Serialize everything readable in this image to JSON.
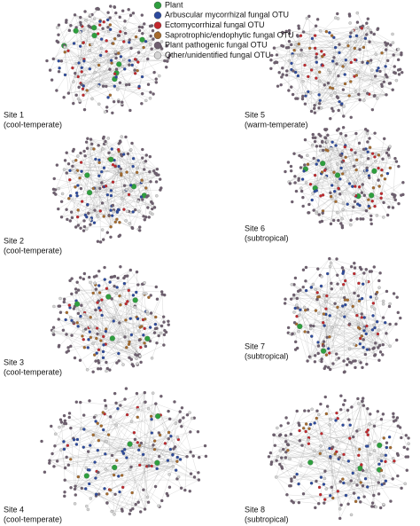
{
  "legend": {
    "items": [
      {
        "label": "Plant",
        "color": "#2e9e3e"
      },
      {
        "label": "Arbuscular mycorrhizal fungal OTU",
        "color": "#2c4a9e"
      },
      {
        "label": "Ectomycorrhizal fungal OTU",
        "color": "#c1272d"
      },
      {
        "label": "Saprotrophic/endophytic fungal OTU",
        "color": "#a56a2c"
      },
      {
        "label": "Plant pathogenic fungal OTU",
        "color": "#6f5f70"
      },
      {
        "label": "Other/unidentified fungal OTU",
        "color": "#d4d4d4"
      }
    ]
  },
  "sites": [
    {
      "name": "Site 1",
      "climate": "(cool-temperate)"
    },
    {
      "name": "Site 2",
      "climate": "(cool-temperate)"
    },
    {
      "name": "Site 3",
      "climate": "(cool-temperate)"
    },
    {
      "name": "Site 4",
      "climate": "(cool-temperate)"
    },
    {
      "name": "Site 5",
      "climate": "(warm-temperate)"
    },
    {
      "name": "Site 6",
      "climate": "(subtropical)"
    },
    {
      "name": "Site 7",
      "climate": "(subtropical)"
    },
    {
      "name": "Site 8",
      "climate": "(subtropical)"
    }
  ]
}
